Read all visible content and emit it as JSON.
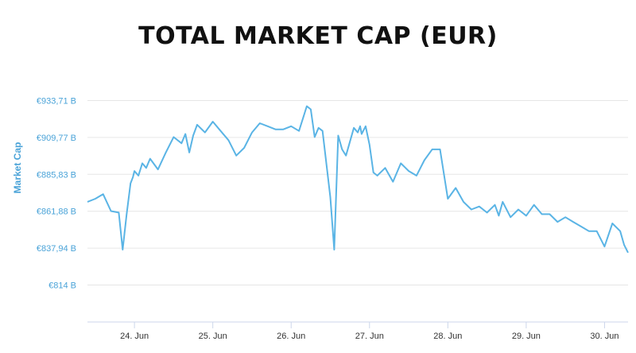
{
  "chart_data": {
    "type": "line",
    "title": "TOTAL MARKET CAP (EUR)",
    "ylabel": "Market Cap",
    "xlabel": "",
    "ylim": [
      790.05,
      957.66
    ],
    "yticks": [
      {
        "value": 814,
        "label": "€814 B"
      },
      {
        "value": 837.94,
        "label": "€837,94 B"
      },
      {
        "value": 861.88,
        "label": "€861,88 B"
      },
      {
        "value": 885.83,
        "label": "€885,83 B"
      },
      {
        "value": 909.77,
        "label": "€909,77 B"
      },
      {
        "value": 933.71,
        "label": "€933,71 B"
      }
    ],
    "xlim": [
      23.4,
      30.3
    ],
    "xticks": [
      {
        "value": 24,
        "label": "24. Jun"
      },
      {
        "value": 25,
        "label": "25. Jun"
      },
      {
        "value": 26,
        "label": "26. Jun"
      },
      {
        "value": 27,
        "label": "27. Jun"
      },
      {
        "value": 28,
        "label": "28. Jun"
      },
      {
        "value": 29,
        "label": "29. Jun"
      },
      {
        "value": 30,
        "label": "30. Jun"
      }
    ],
    "grid": "horizontal",
    "legend": "none",
    "line_color": "#5ab4e5",
    "series": [
      {
        "x": [
          23.4,
          23.5,
          23.6,
          23.7,
          23.8,
          23.85,
          23.9,
          23.95,
          23.98,
          24.0,
          24.05,
          24.1,
          24.15,
          24.2,
          24.3,
          24.4,
          24.5,
          24.6,
          24.65,
          24.7,
          24.75,
          24.8,
          24.9,
          25.0,
          25.1,
          25.2,
          25.3,
          25.4,
          25.5,
          25.6,
          25.7,
          25.8,
          25.9,
          26.0,
          26.1,
          26.2,
          26.25,
          26.3,
          26.35,
          26.4,
          26.5,
          26.55,
          26.6,
          26.65,
          26.7,
          26.8,
          26.85,
          26.88,
          26.9,
          26.95,
          27.0,
          27.05,
          27.1,
          27.2,
          27.3,
          27.4,
          27.5,
          27.6,
          27.7,
          27.8,
          27.9,
          28.0,
          28.1,
          28.2,
          28.3,
          28.4,
          28.5,
          28.6,
          28.65,
          28.7,
          28.8,
          28.9,
          29.0,
          29.1,
          29.2,
          29.3,
          29.4,
          29.5,
          29.6,
          29.7,
          29.8,
          29.9,
          30.0,
          30.1,
          30.2,
          30.25,
          30.3
        ],
        "values": [
          868,
          870,
          873,
          862,
          861,
          837,
          860,
          880,
          884,
          888,
          885,
          893,
          890,
          896,
          889,
          900,
          910,
          906,
          912,
          900,
          911,
          918,
          913,
          920,
          914,
          908,
          898,
          903,
          913,
          919,
          917,
          915,
          915,
          917,
          914,
          930,
          928,
          910,
          916,
          914,
          871,
          837,
          911,
          902,
          898,
          916,
          913,
          917,
          912,
          917,
          905,
          887,
          885,
          890,
          881,
          893,
          888,
          885,
          895,
          902,
          902,
          870,
          877,
          868,
          863,
          865,
          861,
          866,
          859,
          868,
          858,
          863,
          859,
          866,
          860,
          860,
          855,
          858,
          855,
          852,
          849,
          849,
          839,
          854,
          849,
          840,
          835
        ]
      }
    ]
  }
}
